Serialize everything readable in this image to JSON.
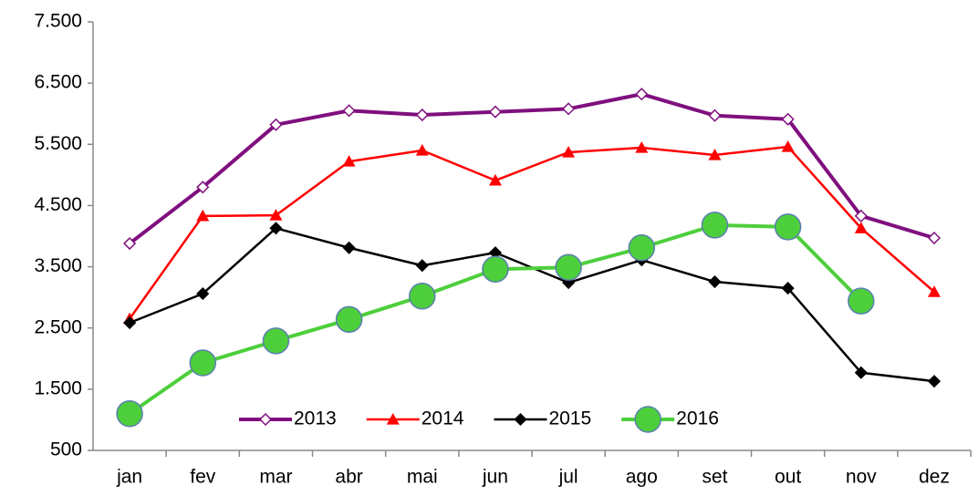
{
  "chart_data": {
    "type": "line",
    "categories": [
      "jan",
      "fev",
      "mar",
      "abr",
      "mai",
      "jun",
      "jul",
      "ago",
      "set",
      "out",
      "nov",
      "dez"
    ],
    "series": [
      {
        "name": "2013",
        "color": "#7f0f7e",
        "marker": "diamond-open",
        "line_width": 4,
        "values": [
          3880,
          4800,
          5820,
          6050,
          5980,
          6030,
          6080,
          6320,
          5970,
          5910,
          4330,
          3970
        ]
      },
      {
        "name": "2014",
        "color": "#ff0000",
        "marker": "triangle",
        "line_width": 2.5,
        "values": [
          2650,
          4330,
          4340,
          5220,
          5400,
          4910,
          5370,
          5445,
          5325,
          5460,
          4130,
          3090
        ]
      },
      {
        "name": "2015",
        "color": "#000000",
        "marker": "diamond",
        "line_width": 2.5,
        "values": [
          2585,
          3060,
          4130,
          3810,
          3520,
          3730,
          3240,
          3610,
          3255,
          3150,
          1770,
          1630
        ]
      },
      {
        "name": "2016",
        "color": "#4dcf3c",
        "marker": "circle",
        "line_width": 4,
        "values": [
          1100,
          1930,
          2290,
          2640,
          3020,
          3460,
          3490,
          3810,
          4180,
          4150,
          2940,
          null
        ]
      }
    ],
    "ylim": [
      500,
      7500
    ],
    "yticks": [
      500,
      {
        "value": 1500,
        "label": "1.500"
      },
      {
        "value": 2500,
        "label": "2.500"
      },
      {
        "value": 3500,
        "label": "3.500"
      },
      {
        "value": 4500,
        "label": "4.500"
      },
      {
        "value": 5500,
        "label": "5.500"
      },
      {
        "value": 6500,
        "label": "6.500"
      },
      {
        "value": 7500,
        "label": "7.500"
      }
    ],
    "grid": false,
    "legend": "bottom"
  }
}
